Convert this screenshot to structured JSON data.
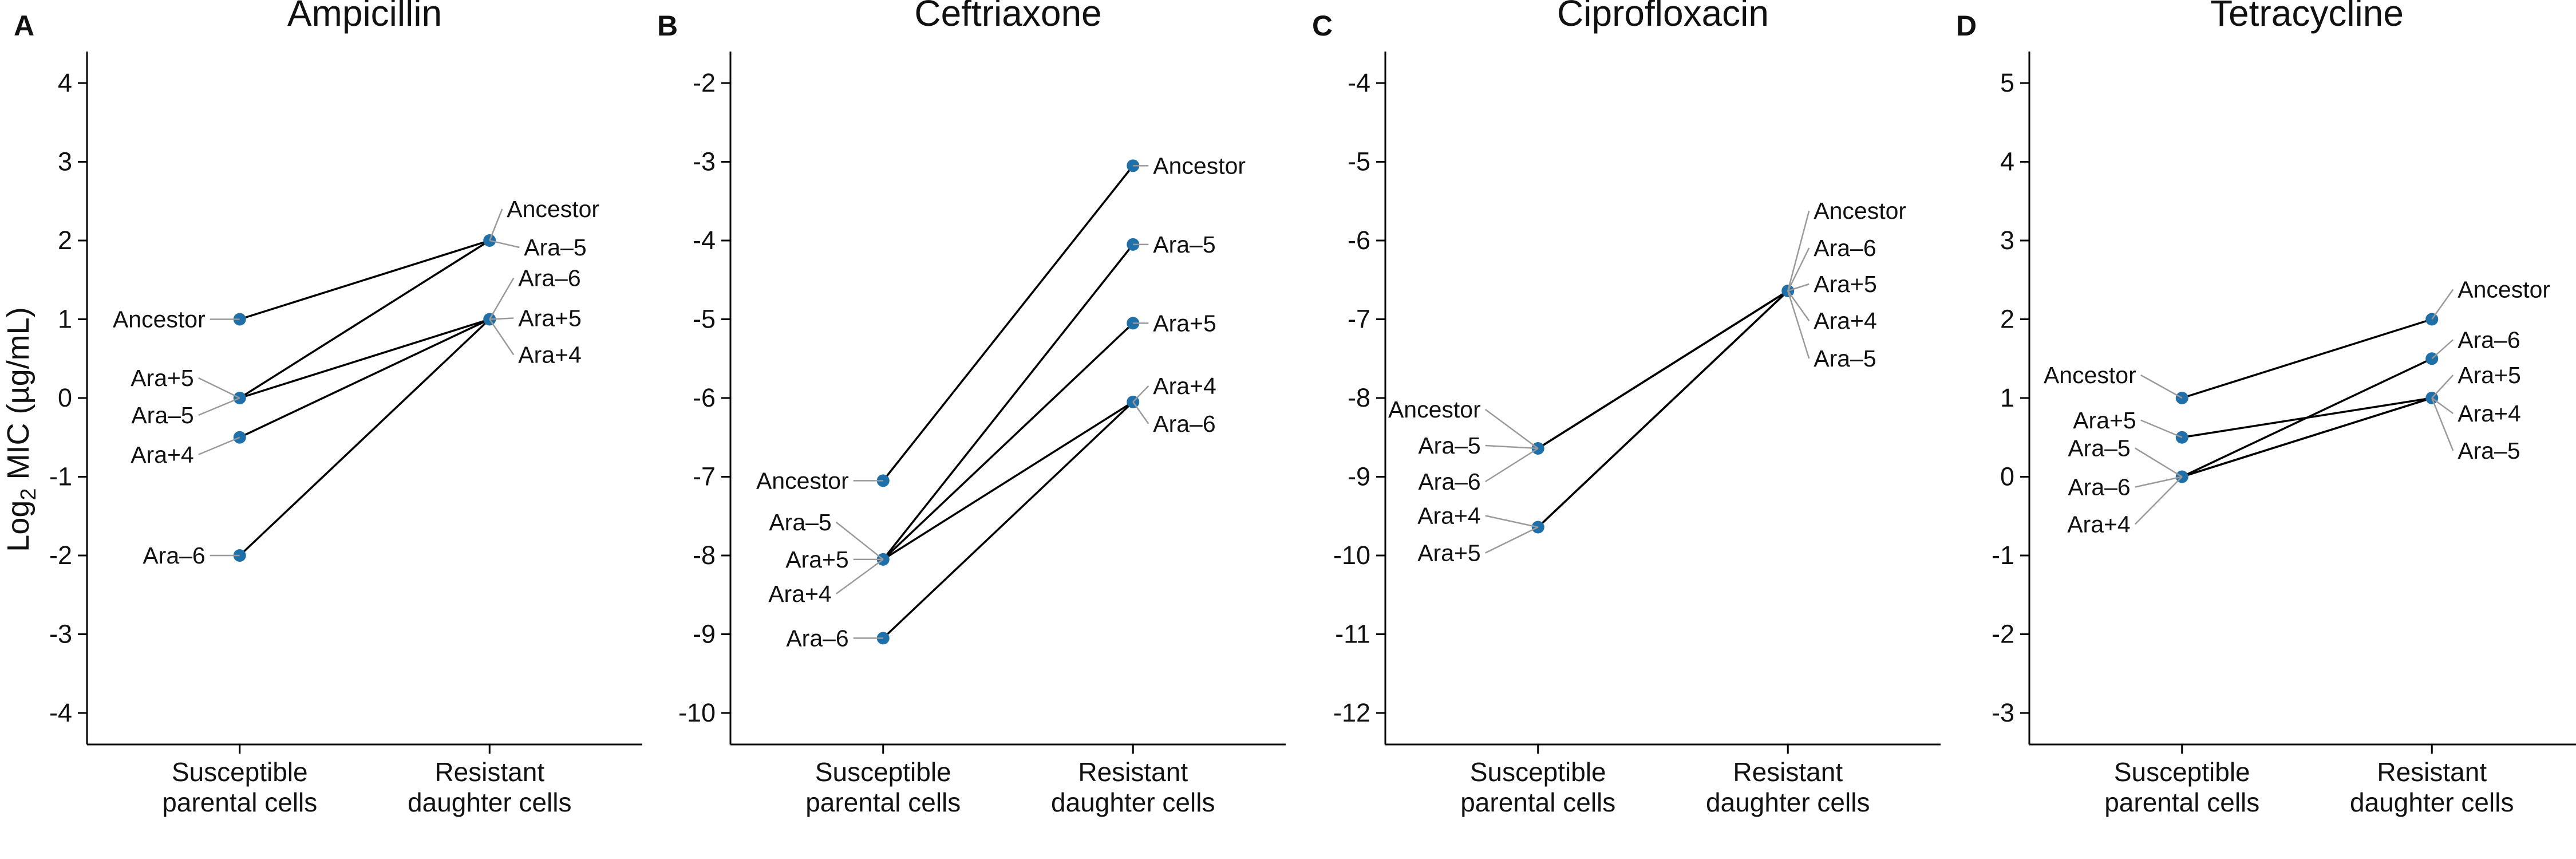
{
  "figure": {
    "ylabel_main": "Log",
    "ylabel_sub": "2",
    "ylabel_rest": " MIC (µg/mL)"
  },
  "chart_data": [
    {
      "panel": "A",
      "type": "line",
      "title": "Ampicillin",
      "categories": [
        "Susceptible\nparental cells",
        "Resistant\ndaughter cells"
      ],
      "ylim": [
        -4.4,
        4.4
      ],
      "yticks": [
        -4,
        -3,
        -2,
        -1,
        0,
        1,
        2,
        3,
        4
      ],
      "series": [
        {
          "name": "Ancestor",
          "values": [
            1,
            2
          ]
        },
        {
          "name": "Ara+5",
          "values": [
            0,
            1
          ]
        },
        {
          "name": "Ara–5",
          "values": [
            0,
            2
          ]
        },
        {
          "name": "Ara+4",
          "values": [
            -0.5,
            1
          ]
        },
        {
          "name": "Ara–6",
          "values": [
            -2,
            1
          ]
        }
      ],
      "labels_left": [
        "Ancestor",
        "Ara+5",
        "Ara–5",
        "Ara+4",
        "Ara–6"
      ],
      "labels_right": [
        "Ancestor",
        "Ara–5",
        "Ara–6",
        "Ara+5",
        "Ara+4"
      ]
    },
    {
      "panel": "B",
      "type": "line",
      "title": "Ceftriaxone",
      "categories": [
        "Susceptible\nparental cells",
        "Resistant\ndaughter cells"
      ],
      "ylim": [
        -10.4,
        -1.6
      ],
      "yticks": [
        -10,
        -9,
        -8,
        -7,
        -6,
        -5,
        -4,
        -3,
        -2
      ],
      "series": [
        {
          "name": "Ancestor",
          "values": [
            -7.05,
            -3.05
          ]
        },
        {
          "name": "Ara–5",
          "values": [
            -8.05,
            -4.05
          ]
        },
        {
          "name": "Ara+5",
          "values": [
            -8.05,
            -5.05
          ]
        },
        {
          "name": "Ara+4",
          "values": [
            -8.05,
            -6.05
          ]
        },
        {
          "name": "Ara–6",
          "values": [
            -9.05,
            -6.05
          ]
        }
      ],
      "labels_left": [
        "Ancestor",
        "Ara–5",
        "Ara+5",
        "Ara+4",
        "Ara–6"
      ],
      "labels_right": [
        "Ancestor",
        "Ara–5",
        "Ara+5",
        "Ara+4",
        "Ara–6"
      ]
    },
    {
      "panel": "C",
      "type": "line",
      "title": "Ciprofloxacin",
      "categories": [
        "Susceptible\nparental cells",
        "Resistant\ndaughter cells"
      ],
      "ylim": [
        -12.4,
        -3.6
      ],
      "yticks": [
        -12,
        -11,
        -10,
        -9,
        -8,
        -7,
        -6,
        -5,
        -4
      ],
      "series": [
        {
          "name": "Ancestor",
          "values": [
            -8.64,
            -6.64
          ]
        },
        {
          "name": "Ara–5",
          "values": [
            -8.64,
            -6.64
          ]
        },
        {
          "name": "Ara–6",
          "values": [
            -8.64,
            -6.64
          ]
        },
        {
          "name": "Ara+4",
          "values": [
            -9.64,
            -6.64
          ]
        },
        {
          "name": "Ara+5",
          "values": [
            -9.64,
            -6.64
          ]
        }
      ],
      "labels_left": [
        "Ancestor",
        "Ara–5",
        "Ara–6",
        "Ara+4",
        "Ara+5"
      ],
      "labels_right": [
        "Ancestor",
        "Ara–6",
        "Ara+5",
        "Ara+4",
        "Ara–5"
      ]
    },
    {
      "panel": "D",
      "type": "line",
      "title": "Tetracycline",
      "categories": [
        "Susceptible\nparental cells",
        "Resistant\ndaughter cells"
      ],
      "ylim": [
        -3.4,
        5.4
      ],
      "yticks": [
        -3,
        -2,
        -1,
        0,
        1,
        2,
        3,
        4,
        5
      ],
      "series": [
        {
          "name": "Ancestor",
          "values": [
            1,
            2
          ]
        },
        {
          "name": "Ara+5",
          "values": [
            0.5,
            1
          ]
        },
        {
          "name": "Ara–5",
          "values": [
            0,
            1
          ]
        },
        {
          "name": "Ara–6",
          "values": [
            0,
            1.5
          ]
        },
        {
          "name": "Ara+4",
          "values": [
            0,
            1
          ]
        }
      ],
      "labels_left": [
        "Ancestor",
        "Ara+5",
        "Ara–5",
        "Ara–6",
        "Ara+4"
      ],
      "labels_right": [
        "Ancestor",
        "Ara–6",
        "Ara+5",
        "Ara+4",
        "Ara–5"
      ]
    }
  ],
  "colors": {
    "point": "#1f6fa8",
    "line": "#000000",
    "leader": "#9a9a9a",
    "axis": "#000000"
  }
}
